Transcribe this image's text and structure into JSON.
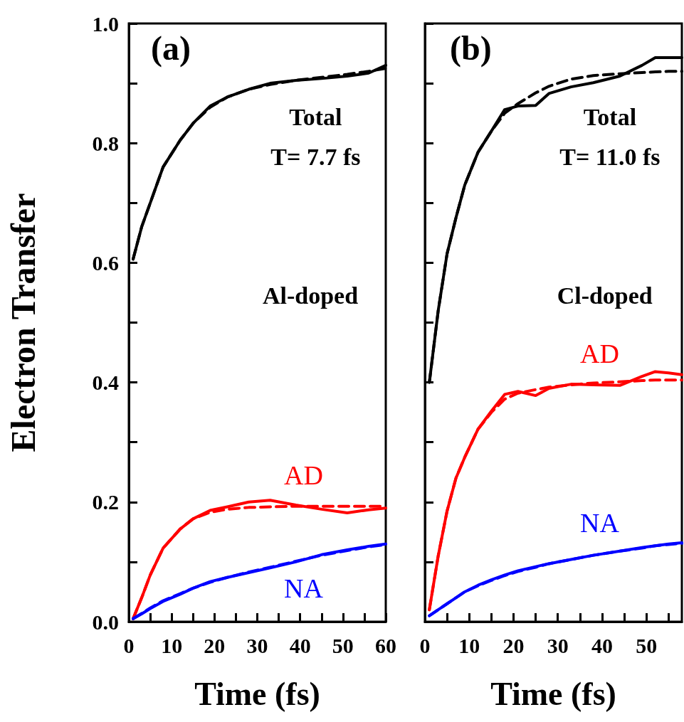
{
  "chart_data": [
    {
      "type": "line",
      "title": "(a)",
      "xlabel": "Time (fs)",
      "ylabel": "Electron Transfer",
      "xlim": [
        0,
        60
      ],
      "ylim": [
        0,
        1
      ],
      "xticks": [
        0,
        {
          "value": 5,
          "label": null
        },
        10,
        {
          "value": 15,
          "label": null
        },
        20,
        {
          "value": 25,
          "label": null
        },
        30,
        {
          "value": 35,
          "label": null
        },
        40,
        {
          "value": 45,
          "label": null
        },
        50,
        {
          "value": 55,
          "label": null
        },
        60
      ],
      "yticks": [
        {
          "value": 0,
          "label": "0.0"
        },
        {
          "value": 0.1,
          "label": null
        },
        0.2,
        {
          "value": 0.3,
          "label": null
        },
        0.4,
        {
          "value": 0.5,
          "label": null
        },
        0.6,
        {
          "value": 0.7,
          "label": null
        },
        0.8,
        {
          "value": 0.9,
          "label": null
        },
        {
          "value": 1,
          "label": "1.0"
        }
      ],
      "x": [
        1,
        3,
        5,
        8,
        12,
        15,
        19,
        23,
        28,
        33,
        39,
        45,
        51,
        56,
        60
      ],
      "series": [
        {
          "color": "#000000",
          "line_style": "solid",
          "values": [
            0.606,
            0.66,
            0.7,
            0.76,
            0.805,
            0.833,
            0.862,
            0.877,
            0.89,
            0.9,
            0.905,
            0.908,
            0.912,
            0.917,
            0.93
          ]
        },
        {
          "color": "#000000",
          "line_style": "dashed",
          "values": [
            0.606,
            0.66,
            0.7,
            0.76,
            0.805,
            0.833,
            0.86,
            0.877,
            0.89,
            0.898,
            0.905,
            0.91,
            0.915,
            0.92,
            0.925
          ]
        },
        {
          "name": "AD",
          "color": "#ff0000",
          "line_style": "solid",
          "values": [
            0.005,
            0.04,
            0.078,
            0.123,
            0.155,
            0.172,
            0.186,
            0.192,
            0.2,
            0.203,
            0.195,
            0.188,
            0.182,
            0.187,
            0.19
          ]
        },
        {
          "color": "#ff0000",
          "line_style": "dashed",
          "values": [
            0.005,
            0.04,
            0.078,
            0.123,
            0.155,
            0.172,
            0.183,
            0.188,
            0.191,
            0.192,
            0.193,
            0.193,
            0.193,
            0.193,
            0.193
          ]
        },
        {
          "name": "NA",
          "color": "#0000ff",
          "line_style": "solid",
          "values": [
            0.005,
            0.013,
            0.022,
            0.034,
            0.046,
            0.056,
            0.067,
            0.074,
            0.082,
            0.09,
            0.1,
            0.112,
            0.12,
            0.126,
            0.13
          ]
        },
        {
          "color": "#0000ff",
          "line_style": "dashed",
          "values": [
            0.005,
            0.014,
            0.023,
            0.035,
            0.047,
            0.056,
            0.066,
            0.074,
            0.083,
            0.091,
            0.101,
            0.111,
            0.119,
            0.125,
            0.129
          ]
        }
      ],
      "annotations": [
        "Total\nT= 7.7 fs",
        "Al-doped"
      ],
      "grid": false
    },
    {
      "type": "line",
      "title": "(b)",
      "xlabel": "Time (fs)",
      "xlim": [
        0,
        58
      ],
      "ylim": [
        0,
        1
      ],
      "tick_labels": "x",
      "yticks": [
        0,
        0.1,
        0.2,
        0.3,
        0.4,
        0.5,
        0.6,
        0.7,
        0.8,
        0.9,
        1
      ],
      "xticks": [
        0,
        {
          "value": 5,
          "label": null
        },
        10,
        {
          "value": 15,
          "label": null
        },
        20,
        {
          "value": 25,
          "label": null
        },
        30,
        {
          "value": 35,
          "label": null
        },
        40,
        {
          "value": 45,
          "label": null
        },
        50,
        {
          "value": 55,
          "label": null
        }
      ],
      "x": [
        1,
        3,
        5,
        7,
        9,
        12,
        15,
        18,
        21,
        25,
        28,
        33,
        38,
        44,
        49,
        52,
        55,
        58
      ],
      "series": [
        {
          "color": "#000000",
          "line_style": "solid",
          "values": [
            0.4,
            0.52,
            0.615,
            0.675,
            0.73,
            0.785,
            0.82,
            0.856,
            0.862,
            0.863,
            0.883,
            0.894,
            0.901,
            0.912,
            0.93,
            0.943,
            0.943,
            0.943
          ]
        },
        {
          "color": "#000000",
          "line_style": "dashed",
          "values": [
            0.4,
            0.52,
            0.615,
            0.675,
            0.73,
            0.785,
            0.82,
            0.85,
            0.866,
            0.884,
            0.895,
            0.907,
            0.913,
            0.916,
            0.918,
            0.919,
            0.92,
            0.92
          ]
        },
        {
          "name": "AD",
          "color": "#ff0000",
          "line_style": "solid",
          "values": [
            0.02,
            0.11,
            0.185,
            0.24,
            0.275,
            0.322,
            0.352,
            0.38,
            0.385,
            0.378,
            0.39,
            0.397,
            0.396,
            0.395,
            0.41,
            0.418,
            0.416,
            0.413
          ]
        },
        {
          "color": "#ff0000",
          "line_style": "dashed",
          "values": [
            0.02,
            0.11,
            0.185,
            0.24,
            0.275,
            0.322,
            0.35,
            0.372,
            0.382,
            0.388,
            0.392,
            0.396,
            0.399,
            0.401,
            0.403,
            0.404,
            0.404,
            0.404
          ]
        },
        {
          "name": "NA",
          "color": "#0000ff",
          "line_style": "solid",
          "values": [
            0.01,
            0.02,
            0.03,
            0.04,
            0.05,
            0.061,
            0.07,
            0.078,
            0.085,
            0.092,
            0.097,
            0.104,
            0.111,
            0.118,
            0.124,
            0.127,
            0.13,
            0.132
          ]
        },
        {
          "color": "#0000ff",
          "line_style": "dashed",
          "values": [
            0.01,
            0.02,
            0.03,
            0.04,
            0.05,
            0.06,
            0.069,
            0.077,
            0.084,
            0.091,
            0.097,
            0.104,
            0.111,
            0.118,
            0.123,
            0.127,
            0.129,
            0.131
          ]
        }
      ],
      "annotations": [
        "Total\nT= 11.0 fs",
        "Cl-doped"
      ],
      "grid": false
    }
  ]
}
